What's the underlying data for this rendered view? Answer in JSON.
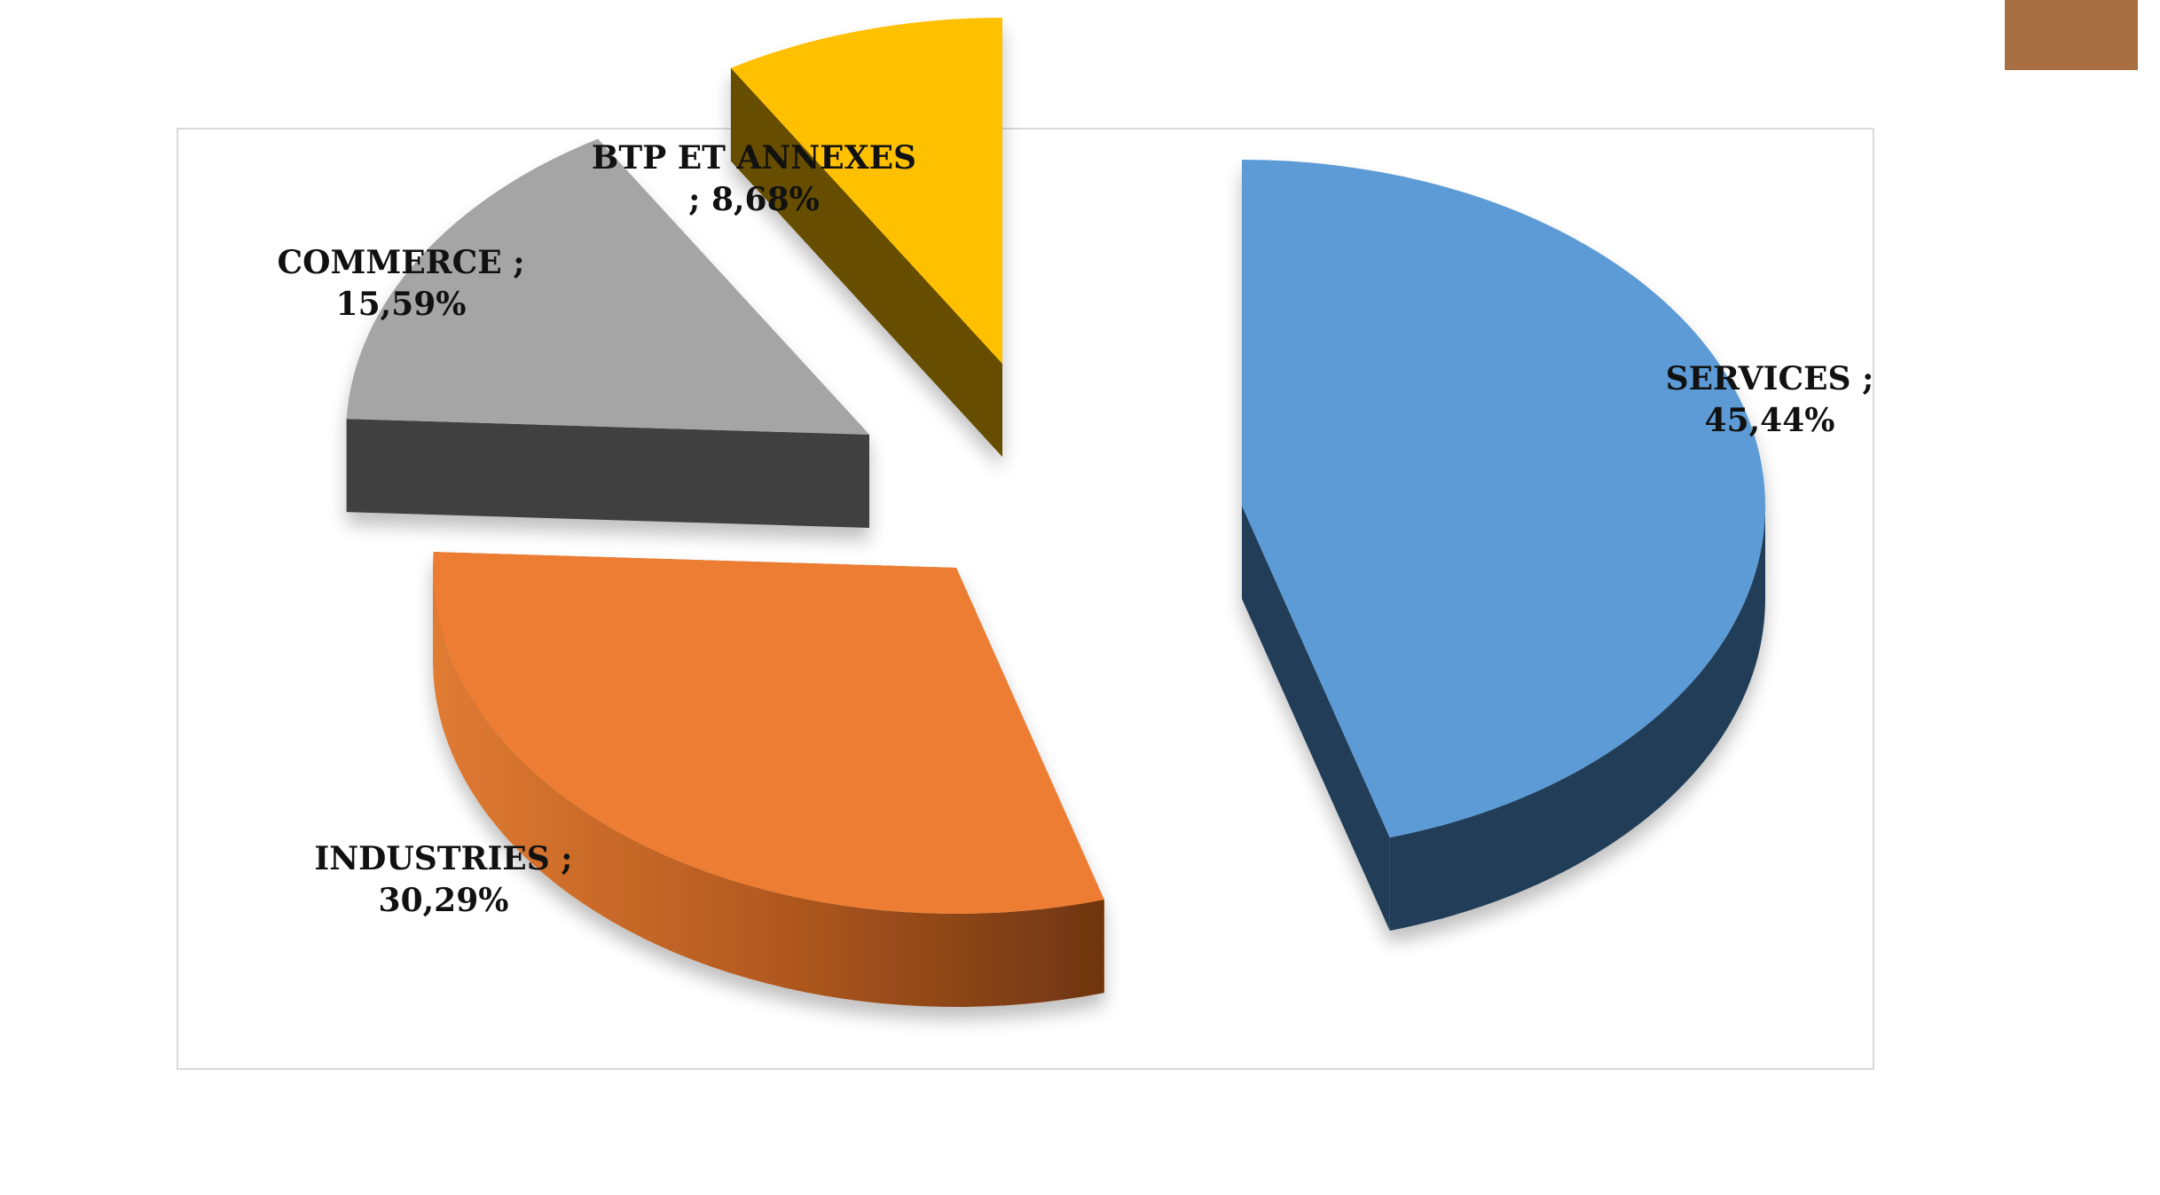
{
  "decor": {
    "corner_color": "#a86f43"
  },
  "chart_data": {
    "type": "pie",
    "style": "3d-exploded",
    "title": "",
    "label_format": "{name} ; {pct}",
    "slices": [
      {
        "name": "SERVICES",
        "value": 45.44,
        "label_line1": "SERVICES ;",
        "label_line2": "45,44%",
        "color": "#5b9bd5",
        "side_color": "#233e58"
      },
      {
        "name": "INDUSTRIES",
        "value": 30.29,
        "label_line1": "INDUSTRIES ;",
        "label_line2": "30,29%",
        "color": "#ed7d31",
        "side_color": "#b4561a"
      },
      {
        "name": "COMMERCE",
        "value": 15.59,
        "label_line1": "COMMERCE ;",
        "label_line2": "15,59%",
        "color": "#a5a5a5",
        "side_color": "#404040"
      },
      {
        "name": "BTP ET ANNEXES",
        "value": 8.68,
        "label_line1": "BTP ET ANNEXES",
        "label_line2": "; 8,68%",
        "color": "#ffc000",
        "side_color": "#664d00"
      }
    ]
  }
}
